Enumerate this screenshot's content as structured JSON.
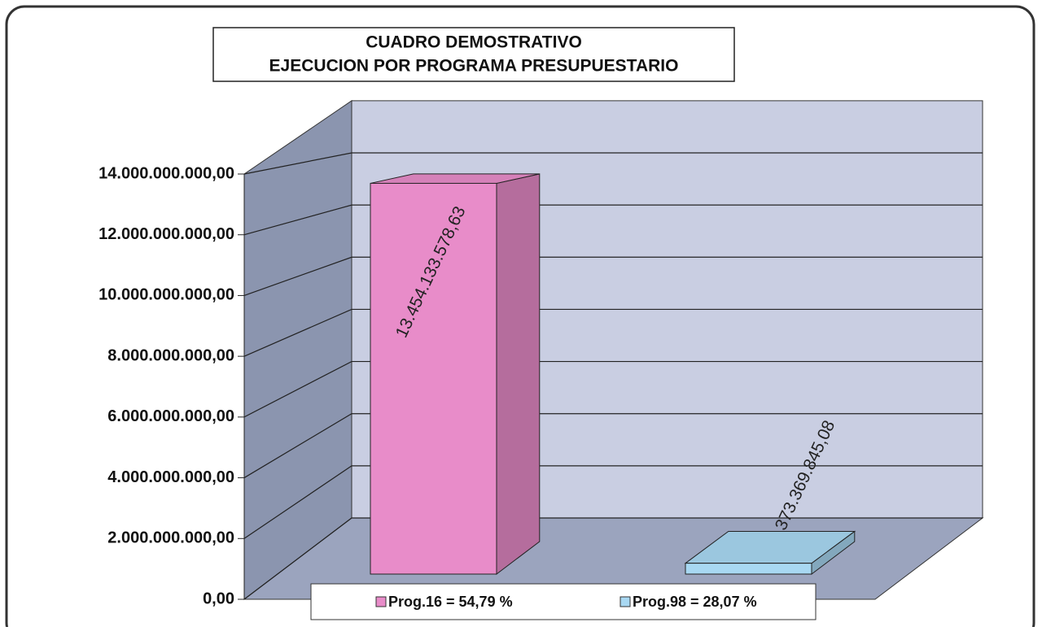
{
  "chart_data": {
    "type": "bar3d",
    "title": "CUADRO DEMOSTRATIVO",
    "subtitle": "EJECUCION POR PROGRAMA PRESUPUESTARIO",
    "series": [
      {
        "name": "Prog.16 = 54,79 %",
        "color": "#e88cc9",
        "values": [
          13454133578.63
        ],
        "value_labels": [
          "13.454.133.578,63"
        ]
      },
      {
        "name": "Prog.98 = 28,07 %",
        "color": "#a8d8f2",
        "values": [
          373369845.08
        ],
        "value_labels": [
          "373.369.845,08"
        ]
      }
    ],
    "ylim": [
      0,
      16000000000
    ],
    "yticks": [
      {
        "value": 0,
        "label": "0,00"
      },
      {
        "value": 2000000000,
        "label": "2.000.000.000,00"
      },
      {
        "value": 4000000000,
        "label": "4.000.000.000,00"
      },
      {
        "value": 6000000000,
        "label": "6.000.000.000,00"
      },
      {
        "value": 8000000000,
        "label": "8.000.000.000,00"
      },
      {
        "value": 10000000000,
        "label": "10.000.000.000,00"
      },
      {
        "value": 12000000000,
        "label": "12.000.000.000,00"
      },
      {
        "value": 14000000000,
        "label": "14.000.000.000,00"
      }
    ],
    "grid": true
  }
}
